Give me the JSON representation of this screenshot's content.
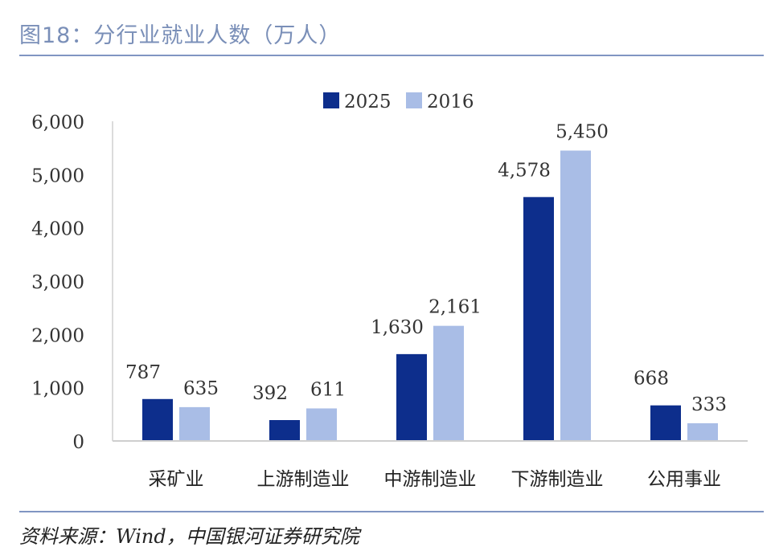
{
  "header": {
    "title": "图18：分行业就业人数（万人）"
  },
  "footer": {
    "source": "资料来源：Wind，中国银河证券研究院"
  },
  "colors": {
    "series_2025": "#0d2e8c",
    "series_2016": "#a9bde6",
    "rule": "#8095c2",
    "title": "#7a8fb8"
  },
  "chart_data": {
    "type": "bar",
    "title": "分行业就业人数（万人）",
    "xlabel": "",
    "ylabel": "",
    "ylim": [
      0,
      6000
    ],
    "yticks": [
      "0",
      "1,000",
      "2,000",
      "3,000",
      "4,000",
      "5,000",
      "6,000"
    ],
    "ytick_values": [
      0,
      1000,
      2000,
      3000,
      4000,
      5000,
      6000
    ],
    "grid": false,
    "legend_position": "top-center",
    "categories": [
      "采矿业",
      "上游制造业",
      "中游制造业",
      "下游制造业",
      "公用事业"
    ],
    "series": [
      {
        "name": "2025",
        "values": [
          787,
          392,
          1630,
          4578,
          668
        ],
        "labels": [
          "787",
          "392",
          "1,630",
          "4,578",
          "668"
        ]
      },
      {
        "name": "2016",
        "values": [
          635,
          611,
          2161,
          5450,
          333
        ],
        "labels": [
          "635",
          "611",
          "2,161",
          "5,450",
          "333"
        ]
      }
    ]
  }
}
